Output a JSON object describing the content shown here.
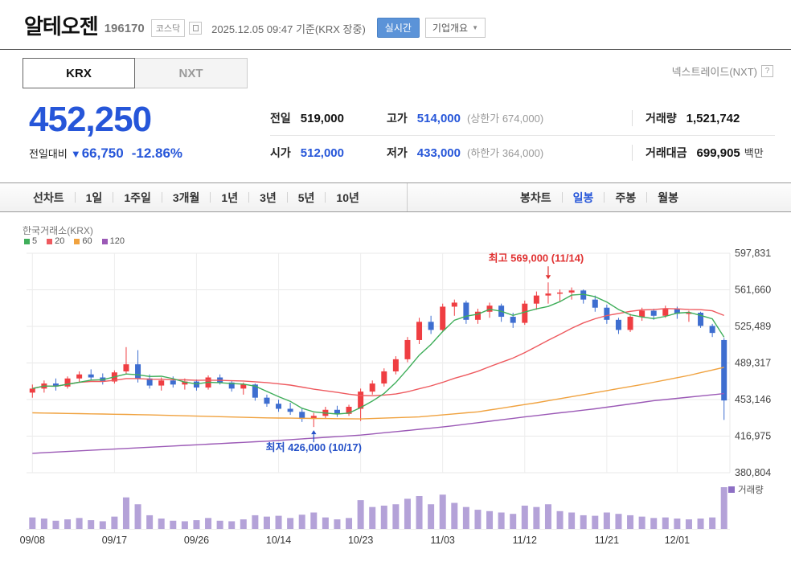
{
  "header": {
    "stock_name": "알테오젠",
    "stock_code": "196170",
    "market_badge": "코스닥",
    "datetime_note": "2025.12.05 09:47 기준(KRX 장중)",
    "realtime_button": "실시간",
    "company_overview_button": "기업개요"
  },
  "tabs": {
    "krx": "KRX",
    "nxt": "NXT",
    "nxt_link": "넥스트레이드(NXT)",
    "help_icon": "?"
  },
  "price": {
    "current": "452,250",
    "change_label": "전일대비",
    "change_arrow": "▼",
    "change_value": "66,750",
    "change_percent": "-12.86%"
  },
  "stats": {
    "rows": [
      {
        "cells": [
          {
            "key": "prev-close",
            "label": "전일",
            "value": "519,000",
            "value_color": "black"
          },
          {
            "key": "day-high",
            "label": "고가",
            "value": "514,000",
            "value_color": "blue",
            "extra": "(상한가 674,000)"
          },
          {
            "key": "volume",
            "label": "거래량",
            "value": "1,521,742",
            "value_color": "black"
          }
        ]
      },
      {
        "cells": [
          {
            "key": "day-open",
            "label": "시가",
            "value": "512,000",
            "value_color": "blue"
          },
          {
            "key": "day-low",
            "label": "저가",
            "value": "433,000",
            "value_color": "blue",
            "extra": "(하한가 364,000)"
          },
          {
            "key": "trade-value",
            "label": "거래대금",
            "value": "699,905",
            "value_color": "black",
            "unit": "백만"
          }
        ]
      }
    ]
  },
  "toolbar": {
    "line_chart_label": "선차트",
    "periods": [
      "1일",
      "1주일",
      "3개월",
      "1년",
      "3년",
      "5년",
      "10년"
    ],
    "candle_chart_label": "봉차트",
    "candle_types": [
      "일봉",
      "주봉",
      "월봉"
    ],
    "active_candle_type": "일봉"
  },
  "chart_data": {
    "type": "candlestick",
    "exchange_label": "한국거래소(KRX)",
    "y_ticks": [
      597831,
      561660,
      525489,
      489317,
      453146,
      416975,
      380804
    ],
    "x_ticks": [
      {
        "i": 0,
        "label": "09/08"
      },
      {
        "i": 7,
        "label": "09/17"
      },
      {
        "i": 14,
        "label": "09/26"
      },
      {
        "i": 21,
        "label": "10/14"
      },
      {
        "i": 28,
        "label": "10/23"
      },
      {
        "i": 35,
        "label": "11/03"
      },
      {
        "i": 42,
        "label": "11/12"
      },
      {
        "i": 49,
        "label": "11/21"
      },
      {
        "i": 55,
        "label": "12/01"
      }
    ],
    "up_color": "#ef3e42",
    "down_color": "#3e6ed0",
    "volume_color": "#b4a2d8",
    "volume_legend_color": "#8d6fc4",
    "volume_legend": "거래량",
    "annotations": {
      "high": {
        "text": "최고 569,000 (11/14)",
        "index": 44,
        "price": 569000,
        "color": "#e03131"
      },
      "low": {
        "text": "최저 426,000 (10/17)",
        "index": 24,
        "price": 426000,
        "color": "#2450c8"
      }
    },
    "moving_averages": [
      {
        "period": 5,
        "color": "#3fae5a"
      },
      {
        "period": 20,
        "color": "#ee5a5f"
      },
      {
        "period": 60,
        "color": "#f0a23f",
        "points": [
          [
            0,
            440000
          ],
          [
            10,
            438000
          ],
          [
            20,
            435000
          ],
          [
            28,
            434000
          ],
          [
            33,
            436000
          ],
          [
            38,
            441000
          ],
          [
            43,
            450000
          ],
          [
            48,
            460000
          ],
          [
            52,
            468000
          ],
          [
            56,
            477000
          ],
          [
            59,
            485000
          ]
        ]
      },
      {
        "period": 120,
        "color": "#9b59b6",
        "points": [
          [
            0,
            400000
          ],
          [
            10,
            406000
          ],
          [
            20,
            412000
          ],
          [
            28,
            418000
          ],
          [
            35,
            426000
          ],
          [
            42,
            436000
          ],
          [
            48,
            444000
          ],
          [
            53,
            452000
          ],
          [
            59,
            459000
          ]
        ]
      }
    ],
    "candles": [
      [
        "09/08",
        460000,
        468000,
        455000,
        464000,
        420000
      ],
      [
        "09/09",
        464000,
        472000,
        460000,
        469000,
        380000
      ],
      [
        "09/10",
        469000,
        474000,
        462000,
        466000,
        300000
      ],
      [
        "09/11",
        466000,
        476000,
        464000,
        474000,
        350000
      ],
      [
        "09/12",
        474000,
        481000,
        470000,
        478000,
        400000
      ],
      [
        "09/15",
        478000,
        483000,
        472000,
        475000,
        320000
      ],
      [
        "09/16",
        475000,
        479000,
        468000,
        471000,
        280000
      ],
      [
        "09/17",
        471000,
        482000,
        469000,
        480000,
        450000
      ],
      [
        "09/18",
        481000,
        505000,
        478000,
        488000,
        1150000
      ],
      [
        "09/19",
        488000,
        502000,
        470000,
        474000,
        900000
      ],
      [
        "09/22",
        474000,
        478000,
        464000,
        467000,
        500000
      ],
      [
        "09/23",
        467000,
        475000,
        462000,
        472000,
        380000
      ],
      [
        "09/24",
        472000,
        476000,
        465000,
        468000,
        300000
      ],
      [
        "09/25",
        468000,
        474000,
        463000,
        471000,
        280000
      ],
      [
        "09/26",
        471000,
        473000,
        462000,
        465000,
        320000
      ],
      [
        "09/29",
        465000,
        477000,
        463000,
        475000,
        400000
      ],
      [
        "09/30",
        475000,
        478000,
        468000,
        470000,
        300000
      ],
      [
        "10/01",
        470000,
        472000,
        461000,
        464000,
        280000
      ],
      [
        "10/02",
        464000,
        470000,
        458000,
        468000,
        350000
      ],
      [
        "10/10",
        468000,
        469000,
        452000,
        455000,
        500000
      ],
      [
        "10/13",
        455000,
        458000,
        446000,
        449000,
        450000
      ],
      [
        "10/14",
        449000,
        453000,
        441000,
        444000,
        480000
      ],
      [
        "10/15",
        444000,
        450000,
        438000,
        441000,
        400000
      ],
      [
        "10/16",
        441000,
        444000,
        431000,
        434000,
        520000
      ],
      [
        "10/17",
        434000,
        440000,
        426000,
        437000,
        600000
      ],
      [
        "10/20",
        437000,
        446000,
        434000,
        443000,
        420000
      ],
      [
        "10/21",
        443000,
        447000,
        436000,
        439000,
        350000
      ],
      [
        "10/22",
        439000,
        448000,
        437000,
        446000,
        400000
      ],
      [
        "10/23",
        444000,
        464000,
        432000,
        461000,
        1050000
      ],
      [
        "10/24",
        461000,
        472000,
        458000,
        469000,
        800000
      ],
      [
        "10/27",
        469000,
        484000,
        466000,
        481000,
        850000
      ],
      [
        "10/28",
        481000,
        496000,
        478000,
        493000,
        900000
      ],
      [
        "10/29",
        493000,
        515000,
        490000,
        512000,
        1100000
      ],
      [
        "10/30",
        512000,
        534000,
        508000,
        530000,
        1200000
      ],
      [
        "10/31",
        530000,
        536000,
        518000,
        522000,
        900000
      ],
      [
        "11/03",
        522000,
        548000,
        520000,
        545000,
        1250000
      ],
      [
        "11/04",
        545000,
        552000,
        536000,
        549000,
        950000
      ],
      [
        "11/05",
        549000,
        551000,
        528000,
        532000,
        800000
      ],
      [
        "11/06",
        532000,
        543000,
        528000,
        540000,
        700000
      ],
      [
        "11/07",
        540000,
        549000,
        534000,
        546000,
        650000
      ],
      [
        "11/10",
        546000,
        548000,
        530000,
        535000,
        600000
      ],
      [
        "11/11",
        535000,
        539000,
        524000,
        529000,
        550000
      ],
      [
        "11/12",
        529000,
        551000,
        527000,
        548000,
        850000
      ],
      [
        "11/13",
        548000,
        560000,
        542000,
        556000,
        800000
      ],
      [
        "11/14",
        556000,
        569000,
        548000,
        558000,
        900000
      ],
      [
        "11/17",
        558000,
        562000,
        550000,
        559000,
        650000
      ],
      [
        "11/18",
        559000,
        564000,
        552000,
        561000,
        600000
      ],
      [
        "11/19",
        561000,
        562000,
        548000,
        552000,
        500000
      ],
      [
        "11/20",
        552000,
        556000,
        540000,
        544000,
        480000
      ],
      [
        "11/21",
        544000,
        547000,
        528000,
        532000,
        600000
      ],
      [
        "11/24",
        532000,
        534000,
        518000,
        522000,
        550000
      ],
      [
        "11/25",
        522000,
        538000,
        520000,
        535000,
        500000
      ],
      [
        "11/26",
        535000,
        544000,
        531000,
        541000,
        450000
      ],
      [
        "11/27",
        541000,
        543000,
        532000,
        536000,
        400000
      ],
      [
        "11/28",
        536000,
        546000,
        534000,
        543000,
        420000
      ],
      [
        "12/01",
        543000,
        545000,
        533000,
        538000,
        380000
      ],
      [
        "12/02",
        538000,
        541000,
        530000,
        539000,
        350000
      ],
      [
        "12/03",
        539000,
        540000,
        524000,
        526000,
        380000
      ],
      [
        "12/04",
        526000,
        528000,
        515000,
        519000,
        420000
      ],
      [
        "12/05",
        512000,
        514000,
        433000,
        452250,
        1521742
      ]
    ]
  }
}
